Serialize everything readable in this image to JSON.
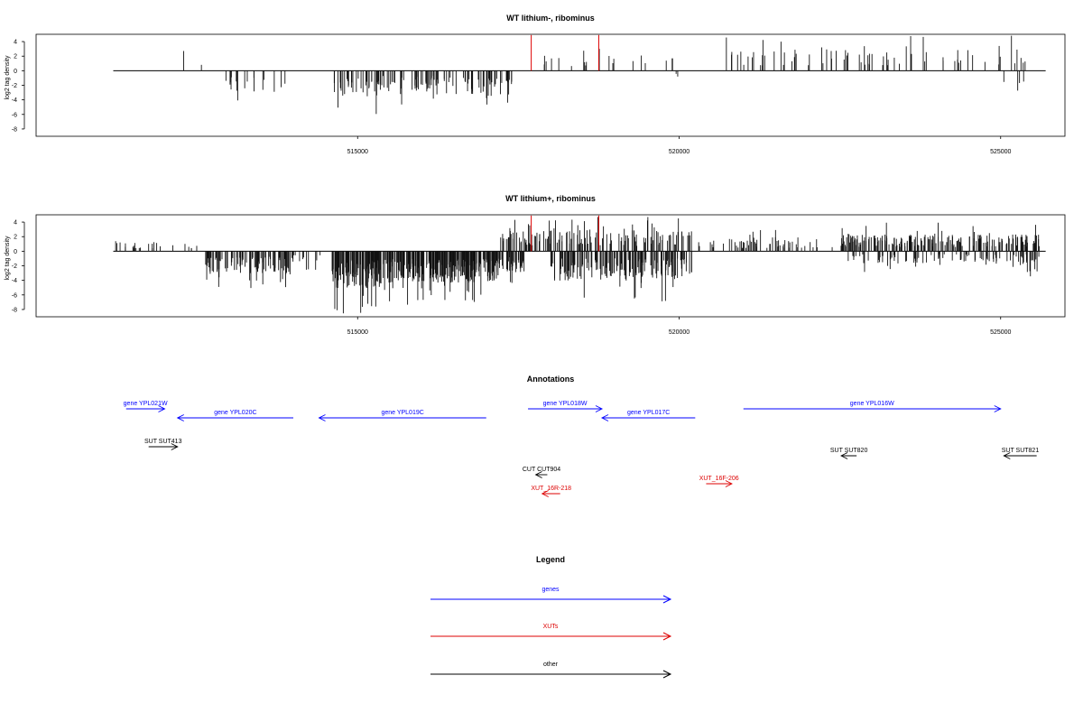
{
  "chart_data": [
    {
      "type": "bar",
      "title": "WT lithium-, ribominus",
      "xlabel": "",
      "ylabel": "log2 tag density",
      "xlim": [
        510000,
        526000
      ],
      "ylim": [
        -9,
        5
      ],
      "x_ticks": [
        515000,
        520000,
        525000
      ],
      "y_ticks": [
        4,
        2,
        0,
        -2,
        -4,
        -6,
        -8
      ],
      "baseline_range": [
        511200,
        525700
      ],
      "highlight_positions": [
        517700,
        518750
      ],
      "highlight_color": "#dd0000",
      "seed": 7,
      "regions": [
        {
          "start": 512200,
          "end": 512600,
          "mean": 2.0,
          "n": 2
        },
        {
          "start": 512700,
          "end": 513400,
          "mean": -2.0,
          "n": 12
        },
        {
          "start": 513400,
          "end": 514200,
          "mean": -2.0,
          "n": 5
        },
        {
          "start": 514600,
          "end": 515300,
          "mean": -2.5,
          "n": 30
        },
        {
          "start": 515300,
          "end": 516200,
          "mean": -2.0,
          "n": 45
        },
        {
          "start": 516200,
          "end": 517400,
          "mean": -2.5,
          "n": 55
        },
        {
          "start": 517600,
          "end": 519900,
          "mean": 1.5,
          "n": 20
        },
        {
          "start": 519900,
          "end": 520000,
          "mean": -1.0,
          "n": 2
        },
        {
          "start": 520600,
          "end": 522500,
          "mean": 2.0,
          "n": 30
        },
        {
          "start": 522500,
          "end": 525400,
          "mean": 2.0,
          "n": 45
        },
        {
          "start": 524800,
          "end": 525600,
          "mean": -2.0,
          "n": 4
        }
      ]
    },
    {
      "type": "bar",
      "title": "WT lithium+, ribominus",
      "xlabel": "",
      "ylabel": "log2 tag density",
      "xlim": [
        510000,
        526000
      ],
      "ylim": [
        -9,
        5
      ],
      "x_ticks": [
        515000,
        520000,
        525000
      ],
      "y_ticks": [
        4,
        2,
        0,
        -2,
        -4,
        -6,
        -8
      ],
      "baseline_range": [
        511200,
        525700
      ],
      "highlight_positions": [
        517700,
        518750
      ],
      "highlight_color": "#dd0000",
      "seed": 23,
      "regions": [
        {
          "start": 511200,
          "end": 512500,
          "mean": 1.0,
          "n": 25
        },
        {
          "start": 512600,
          "end": 514000,
          "mean": -2.2,
          "n": 110
        },
        {
          "start": 514000,
          "end": 514500,
          "mean": -1.2,
          "n": 10
        },
        {
          "start": 514600,
          "end": 515400,
          "mean": -3.5,
          "n": 120
        },
        {
          "start": 515400,
          "end": 517200,
          "mean": -3.0,
          "n": 250
        },
        {
          "start": 517200,
          "end": 517600,
          "mean": -2.0,
          "n": 40
        },
        {
          "start": 517200,
          "end": 520200,
          "mean": 2.0,
          "n": 140
        },
        {
          "start": 518000,
          "end": 520200,
          "mean": -2.8,
          "n": 160
        },
        {
          "start": 520300,
          "end": 522500,
          "mean": 1.3,
          "n": 60
        },
        {
          "start": 522500,
          "end": 525600,
          "mean": 1.6,
          "n": 220
        },
        {
          "start": 522500,
          "end": 525600,
          "mean": -1.2,
          "n": 90
        },
        {
          "start": 525300,
          "end": 525600,
          "mean": -2.0,
          "n": 12
        }
      ]
    }
  ],
  "annotations": {
    "title": "Annotations",
    "xlim": [
      510000,
      526000
    ],
    "features": [
      {
        "label": "gene YPL021W",
        "start": 511400,
        "end": 512000,
        "strand": "+",
        "row": 0,
        "color": "#0000ff"
      },
      {
        "label": "gene YPL020C",
        "start": 512200,
        "end": 514000,
        "strand": "-",
        "row": 1,
        "color": "#0000ff"
      },
      {
        "label": "gene YPL019C",
        "start": 514400,
        "end": 517000,
        "strand": "-",
        "row": 1,
        "color": "#0000ff"
      },
      {
        "label": "gene YPL018W",
        "start": 517650,
        "end": 518800,
        "strand": "+",
        "row": 0,
        "color": "#0000ff"
      },
      {
        "label": "gene YPL017C",
        "start": 518800,
        "end": 520250,
        "strand": "-",
        "row": 1,
        "color": "#0000ff"
      },
      {
        "label": "gene YPL016W",
        "start": 521000,
        "end": 525000,
        "strand": "+",
        "row": 0,
        "color": "#0000ff"
      },
      {
        "label": "SUT SUT413",
        "start": 511750,
        "end": 512200,
        "strand": "+",
        "row": 3,
        "color": "#000000"
      },
      {
        "label": "SUT SUT820",
        "start": 522520,
        "end": 522760,
        "strand": "-",
        "row": 4,
        "color": "#000000"
      },
      {
        "label": "SUT SUT821",
        "start": 525050,
        "end": 525560,
        "strand": "-",
        "row": 4,
        "color": "#000000"
      },
      {
        "label": "CUT CUT904",
        "start": 517770,
        "end": 517950,
        "strand": "-",
        "row": 6,
        "color": "#000000"
      },
      {
        "label": "XUT_16F-206",
        "start": 520420,
        "end": 520820,
        "strand": "+",
        "row": 7,
        "color": "#dd0000"
      },
      {
        "label": "XUT_16R-218",
        "start": 517870,
        "end": 518150,
        "strand": "-",
        "row": 8,
        "color": "#dd0000"
      }
    ]
  },
  "legend": {
    "title": "Legend",
    "items": [
      {
        "label": "genes",
        "color": "#0000ff"
      },
      {
        "label": "XUTs",
        "color": "#dd0000"
      },
      {
        "label": "other",
        "color": "#000000"
      }
    ]
  }
}
